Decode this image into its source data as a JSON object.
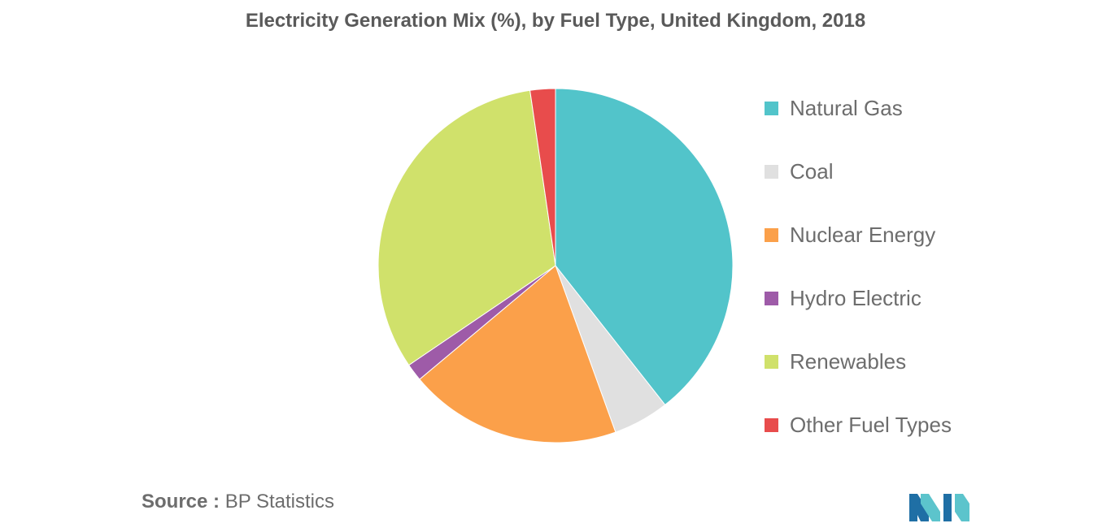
{
  "chart_data": {
    "type": "pie",
    "title": "Electricity Generation Mix (%), by Fuel Type, United Kingdom, 2018",
    "categories": [
      "Natural Gas",
      "Coal",
      "Nuclear Energy",
      "Hydro Electric",
      "Renewables",
      "Other Fuel Types"
    ],
    "values": [
      39.4,
      5.1,
      19.4,
      1.6,
      32.2,
      2.3
    ],
    "colors": [
      "#52c4ca",
      "#e0e0e0",
      "#fba04a",
      "#9e5ba8",
      "#d0e16b",
      "#e84c4c"
    ],
    "legend_position": "right"
  },
  "source": {
    "label": "Source :",
    "text": "BP Statistics"
  },
  "logo": {
    "icon": "mordor-intelligence-logo",
    "colors": [
      "#1f6fa5",
      "#5cc4cc"
    ]
  }
}
